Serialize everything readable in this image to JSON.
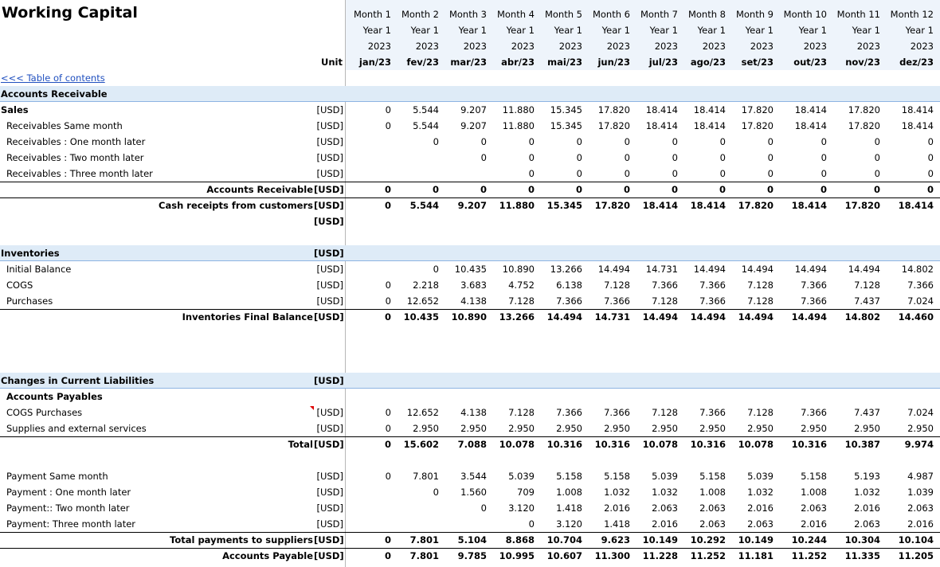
{
  "title": "Working Capital",
  "unit_header": "Unit",
  "toc_link": "<<< Table of contents",
  "months": [
    {
      "month": "Month 1",
      "year": "Year 1",
      "calendar_year": "2023",
      "period": "jan/23"
    },
    {
      "month": "Month 2",
      "year": "Year 1",
      "calendar_year": "2023",
      "period": "fev/23"
    },
    {
      "month": "Month 3",
      "year": "Year 1",
      "calendar_year": "2023",
      "period": "mar/23"
    },
    {
      "month": "Month 4",
      "year": "Year 1",
      "calendar_year": "2023",
      "period": "abr/23"
    },
    {
      "month": "Month 5",
      "year": "Year 1",
      "calendar_year": "2023",
      "period": "mai/23"
    },
    {
      "month": "Month 6",
      "year": "Year 1",
      "calendar_year": "2023",
      "period": "jun/23"
    },
    {
      "month": "Month 7",
      "year": "Year 1",
      "calendar_year": "2023",
      "period": "jul/23"
    },
    {
      "month": "Month 8",
      "year": "Year 1",
      "calendar_year": "2023",
      "period": "ago/23"
    },
    {
      "month": "Month 9",
      "year": "Year 1",
      "calendar_year": "2023",
      "period": "set/23"
    },
    {
      "month": "Month 10",
      "year": "Year 1",
      "calendar_year": "2023",
      "period": "out/23"
    },
    {
      "month": "Month 11",
      "year": "Year 1",
      "calendar_year": "2023",
      "period": "nov/23"
    },
    {
      "month": "Month 12",
      "year": "Year 1",
      "calendar_year": "2023",
      "period": "dez/23"
    }
  ],
  "rows": [
    {
      "label": "Accounts Receivable"
    },
    {
      "label": "Sales",
      "unit": "[USD]",
      "values": [
        "0",
        "5.544",
        "9.207",
        "11.880",
        "15.345",
        "17.820",
        "18.414",
        "18.414",
        "17.820",
        "18.414",
        "17.820",
        "18.414"
      ]
    },
    {
      "label": "Receivables Same month",
      "unit": "[USD]",
      "values": [
        "0",
        "5.544",
        "9.207",
        "11.880",
        "15.345",
        "17.820",
        "18.414",
        "18.414",
        "17.820",
        "18.414",
        "17.820",
        "18.414"
      ]
    },
    {
      "label": "Receivables : One month later",
      "unit": "[USD]",
      "values": [
        null,
        "0",
        "0",
        "0",
        "0",
        "0",
        "0",
        "0",
        "0",
        "0",
        "0",
        "0"
      ]
    },
    {
      "label": "Receivables : Two month later",
      "unit": "[USD]",
      "values": [
        null,
        null,
        "0",
        "0",
        "0",
        "0",
        "0",
        "0",
        "0",
        "0",
        "0",
        "0"
      ]
    },
    {
      "label": "Receivables : Three month later",
      "unit": "[USD]",
      "values": [
        null,
        null,
        null,
        "0",
        "0",
        "0",
        "0",
        "0",
        "0",
        "0",
        "0",
        "0"
      ]
    },
    {
      "label": "Accounts Receivable",
      "unit": "[USD]",
      "values": [
        "0",
        "0",
        "0",
        "0",
        "0",
        "0",
        "0",
        "0",
        "0",
        "0",
        "0",
        "0"
      ]
    },
    {
      "label": "Cash receipts from customers",
      "unit": "[USD]",
      "values": [
        "0",
        "5.544",
        "9.207",
        "11.880",
        "15.345",
        "17.820",
        "18.414",
        "18.414",
        "17.820",
        "18.414",
        "17.820",
        "18.414"
      ]
    },
    {
      "unit": "[USD]"
    },
    {
      "label": "Inventories",
      "unit": "[USD]"
    },
    {
      "label": "Initial Balance",
      "unit": "[USD]",
      "values": [
        null,
        "0",
        "10.435",
        "10.890",
        "13.266",
        "14.494",
        "14.731",
        "14.494",
        "14.494",
        "14.494",
        "14.494",
        "14.802"
      ]
    },
    {
      "label": "COGS",
      "unit": "[USD]",
      "values": [
        "0",
        "2.218",
        "3.683",
        "4.752",
        "6.138",
        "7.128",
        "7.366",
        "7.366",
        "7.128",
        "7.366",
        "7.128",
        "7.366"
      ]
    },
    {
      "label": "Purchases",
      "unit": "[USD]",
      "values": [
        "0",
        "12.652",
        "4.138",
        "7.128",
        "7.366",
        "7.366",
        "7.128",
        "7.366",
        "7.128",
        "7.366",
        "7.437",
        "7.024"
      ]
    },
    {
      "label": "Inventories Final Balance",
      "unit": "[USD]",
      "values": [
        "0",
        "10.435",
        "10.890",
        "13.266",
        "14.494",
        "14.731",
        "14.494",
        "14.494",
        "14.494",
        "14.494",
        "14.802",
        "14.460"
      ]
    },
    {
      "label": "Changes in Current Liabilities",
      "unit": "[USD]"
    },
    {
      "label": "Accounts Payables"
    },
    {
      "label": "COGS Purchases",
      "unit": "[USD]",
      "values": [
        "0",
        "12.652",
        "4.138",
        "7.128",
        "7.366",
        "7.366",
        "7.128",
        "7.366",
        "7.128",
        "7.366",
        "7.437",
        "7.024"
      ]
    },
    {
      "label": "Supplies and external services",
      "unit": "[USD]",
      "values": [
        "0",
        "2.950",
        "2.950",
        "2.950",
        "2.950",
        "2.950",
        "2.950",
        "2.950",
        "2.950",
        "2.950",
        "2.950",
        "2.950"
      ]
    },
    {
      "label": "Total",
      "unit": "[USD]",
      "values": [
        "0",
        "15.602",
        "7.088",
        "10.078",
        "10.316",
        "10.316",
        "10.078",
        "10.316",
        "10.078",
        "10.316",
        "10.387",
        "9.974"
      ]
    },
    {
      "label": "Payment Same month",
      "unit": "[USD]",
      "values": [
        "0",
        "7.801",
        "3.544",
        "5.039",
        "5.158",
        "5.158",
        "5.039",
        "5.158",
        "5.039",
        "5.158",
        "5.193",
        "4.987"
      ]
    },
    {
      "label": "Payment : One month later",
      "unit": "[USD]",
      "values": [
        null,
        "0",
        "1.560",
        "709",
        "1.008",
        "1.032",
        "1.032",
        "1.008",
        "1.032",
        "1.008",
        "1.032",
        "1.039"
      ]
    },
    {
      "label": "Payment:: Two month later",
      "unit": "[USD]",
      "values": [
        null,
        null,
        "0",
        "3.120",
        "1.418",
        "2.016",
        "2.063",
        "2.063",
        "2.016",
        "2.063",
        "2.016",
        "2.063"
      ]
    },
    {
      "label": "Payment: Three month later",
      "unit": "[USD]",
      "values": [
        null,
        null,
        null,
        "0",
        "3.120",
        "1.418",
        "2.016",
        "2.063",
        "2.063",
        "2.016",
        "2.063",
        "2.016"
      ]
    },
    {
      "label": "Total payments to suppliers",
      "unit": "[USD]",
      "values": [
        "0",
        "7.801",
        "5.104",
        "8.868",
        "10.704",
        "9.623",
        "10.149",
        "10.292",
        "10.149",
        "10.244",
        "10.304",
        "10.104"
      ]
    },
    {
      "label": "Accounts Payable",
      "unit": "[USD]",
      "values": [
        "0",
        "7.801",
        "9.785",
        "10.995",
        "10.607",
        "11.300",
        "11.228",
        "11.252",
        "11.181",
        "11.252",
        "11.335",
        "11.205"
      ]
    }
  ]
}
